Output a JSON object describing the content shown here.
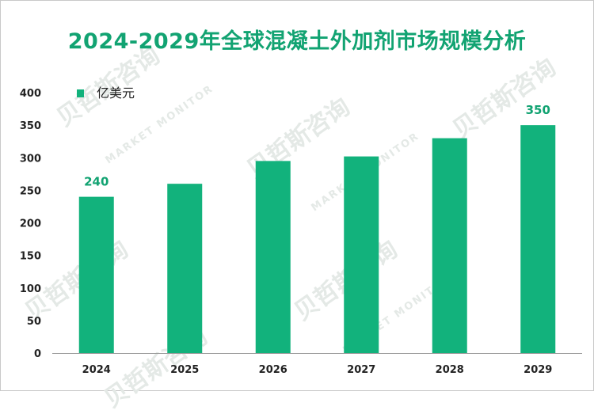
{
  "chart_data": {
    "type": "bar",
    "title": "2024-2029年全球混凝土外加剂市场规模分析",
    "categories": [
      "2024",
      "2025",
      "2026",
      "2027",
      "2028",
      "2029"
    ],
    "series": [
      {
        "name": "亿美元",
        "values": [
          240,
          260,
          295,
          302,
          330,
          350
        ]
      }
    ],
    "data_labels": [
      {
        "category": "2024",
        "text": "240"
      },
      {
        "category": "2029",
        "text": "350"
      }
    ],
    "ylim": [
      0,
      400
    ],
    "yticks": [
      0,
      50,
      100,
      150,
      200,
      250,
      300,
      350,
      400
    ],
    "xlabel": "",
    "ylabel": "",
    "legend_position": "top-left",
    "grid": false
  },
  "colors": {
    "bar": "#12b27c",
    "title": "#12a372",
    "label": "#12a372",
    "axis": "#9a9a9a"
  },
  "watermark": {
    "brand": "贝哲斯咨询",
    "brand_en": "MARKET MONITOR"
  }
}
